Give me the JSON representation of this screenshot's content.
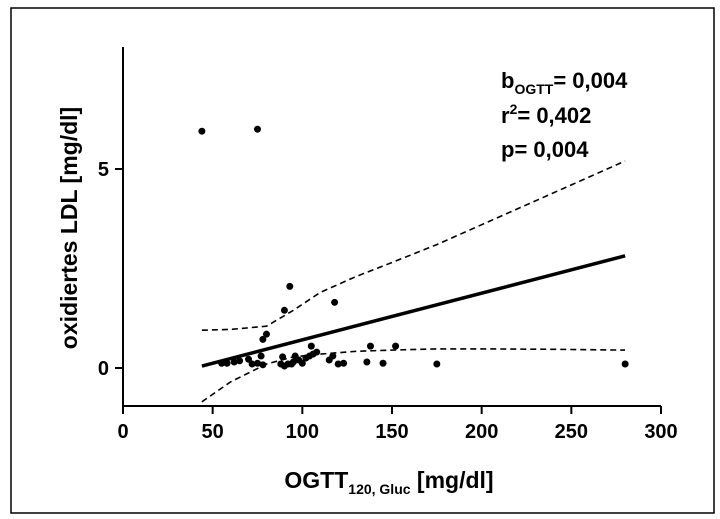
{
  "chart_data": {
    "type": "scatter",
    "xlabel": "OGTT",
    "xlabel_sub": "120, Gluc",
    "xlabel_unit": " [mg/dl]",
    "ylabel": "oxidiertes LDL [mg/dl]",
    "xlim": [
      0,
      300
    ],
    "ylim": [
      -1,
      8
    ],
    "x_ticks": [
      "0",
      "50",
      "100",
      "150",
      "200",
      "250",
      "300"
    ],
    "x_tick_values": [
      0,
      50,
      100,
      150,
      200,
      250,
      300
    ],
    "y_ticks": [
      "0",
      "5"
    ],
    "y_tick_values": [
      0,
      5
    ],
    "grid": false,
    "legend": "none",
    "annotation": {
      "b_main": "b",
      "b_sub": "OGTT",
      "b_value": "= 0,004",
      "r_main": "r",
      "r_sup": "2",
      "r_value": "= 0,402",
      "p_line": "p= 0,004"
    },
    "points": [
      {
        "x": 44,
        "y": 5.95
      },
      {
        "x": 75,
        "y": 6.0
      },
      {
        "x": 55,
        "y": 0.12
      },
      {
        "x": 58,
        "y": 0.12
      },
      {
        "x": 62,
        "y": 0.15
      },
      {
        "x": 65,
        "y": 0.18
      },
      {
        "x": 70,
        "y": 0.22
      },
      {
        "x": 72,
        "y": 0.1
      },
      {
        "x": 75,
        "y": 0.12
      },
      {
        "x": 77,
        "y": 0.3
      },
      {
        "x": 78,
        "y": 0.08
      },
      {
        "x": 78,
        "y": 0.72
      },
      {
        "x": 80,
        "y": 0.85
      },
      {
        "x": 88,
        "y": 0.1
      },
      {
        "x": 89,
        "y": 0.28
      },
      {
        "x": 90,
        "y": 0.05
      },
      {
        "x": 90,
        "y": 1.45
      },
      {
        "x": 92,
        "y": 0.1
      },
      {
        "x": 93,
        "y": 2.05
      },
      {
        "x": 94,
        "y": 0.1
      },
      {
        "x": 95,
        "y": 0.15
      },
      {
        "x": 96,
        "y": 0.3
      },
      {
        "x": 98,
        "y": 0.2
      },
      {
        "x": 100,
        "y": 0.12
      },
      {
        "x": 102,
        "y": 0.25
      },
      {
        "x": 104,
        "y": 0.3
      },
      {
        "x": 105,
        "y": 0.55
      },
      {
        "x": 106,
        "y": 0.35
      },
      {
        "x": 108,
        "y": 0.4
      },
      {
        "x": 115,
        "y": 0.2
      },
      {
        "x": 117,
        "y": 0.3
      },
      {
        "x": 118,
        "y": 1.65
      },
      {
        "x": 120,
        "y": 0.1
      },
      {
        "x": 123,
        "y": 0.12
      },
      {
        "x": 136,
        "y": 0.15
      },
      {
        "x": 138,
        "y": 0.55
      },
      {
        "x": 145,
        "y": 0.12
      },
      {
        "x": 152,
        "y": 0.55
      },
      {
        "x": 175,
        "y": 0.1
      },
      {
        "x": 280,
        "y": 0.1
      }
    ],
    "regression_line": {
      "x": [
        44,
        280
      ],
      "y": [
        0.05,
        2.82
      ]
    },
    "ci_upper": {
      "x": [
        44,
        60,
        80,
        95,
        110,
        130,
        150,
        175,
        200,
        240,
        280
      ],
      "y": [
        0.95,
        0.97,
        1.05,
        1.45,
        1.9,
        2.3,
        2.65,
        3.1,
        3.6,
        4.4,
        5.2
      ]
    },
    "ci_lower": {
      "x": [
        44,
        60,
        80,
        95,
        110,
        130,
        150,
        175,
        200,
        240,
        280
      ],
      "y": [
        -0.85,
        -0.35,
        0.1,
        0.28,
        0.35,
        0.42,
        0.45,
        0.48,
        0.48,
        0.47,
        0.45
      ]
    }
  }
}
